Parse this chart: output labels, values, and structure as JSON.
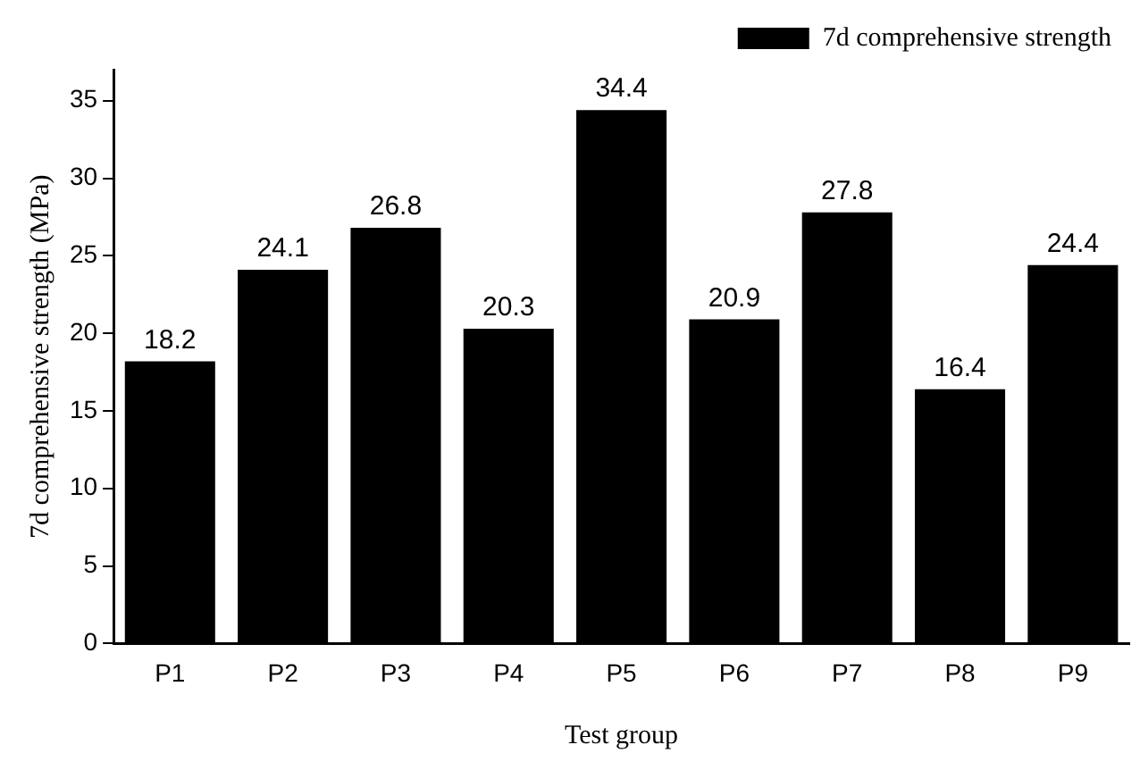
{
  "chart_data": {
    "type": "bar",
    "xlabel": "Test group",
    "ylabel": "7d comprehensive strength (MPa)",
    "categories": [
      "P1",
      "P2",
      "P3",
      "P4",
      "P5",
      "P6",
      "P7",
      "P8",
      "P9"
    ],
    "series": [
      {
        "name": "7d comprehensive strength",
        "color": "#000000",
        "values": [
          18.2,
          24.1,
          26.8,
          20.3,
          34.4,
          20.9,
          27.8,
          16.4,
          24.4
        ]
      }
    ],
    "ylim": [
      0,
      37
    ],
    "yticks": [
      0,
      5,
      10,
      15,
      20,
      25,
      30,
      35
    ],
    "grid": false,
    "legend": "top right",
    "data_labels": true
  }
}
